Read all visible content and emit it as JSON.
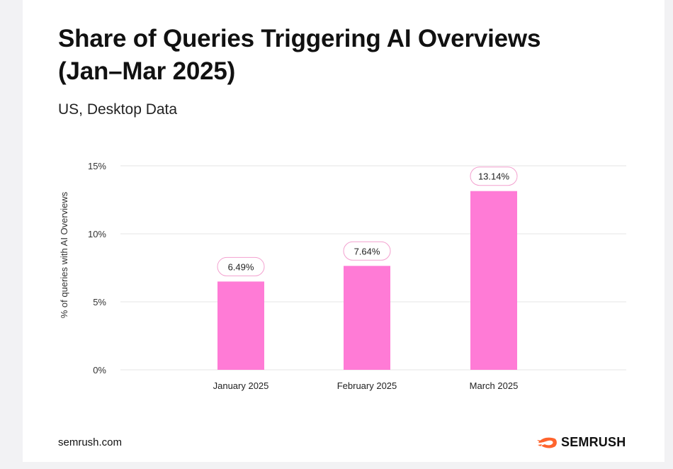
{
  "chart_data": {
    "type": "bar",
    "title": "Share of Queries Triggering AI Overviews (Jan–Mar 2025)",
    "subtitle": "US, Desktop Data",
    "ylabel": "% of queries with AI Overviews",
    "xlabel": "",
    "ylim": [
      0,
      15
    ],
    "yticks": [
      0,
      5,
      10,
      15
    ],
    "ytick_labels": [
      "0%",
      "5%",
      "10%",
      "15%"
    ],
    "grid": true,
    "categories": [
      "January 2025",
      "February 2025",
      "March 2025"
    ],
    "values": [
      6.49,
      7.64,
      13.14
    ],
    "data_labels": [
      "6.49%",
      "7.64%",
      "13.14%"
    ],
    "bar_color": "#ff7bd6",
    "label_border_color": "#f3a0cf"
  },
  "footer": {
    "source": "semrush.com",
    "brand": "SEMRUSH"
  },
  "colors": {
    "brand_orange": "#ff642d",
    "grid": "#e6e6e6",
    "text": "#111111"
  }
}
